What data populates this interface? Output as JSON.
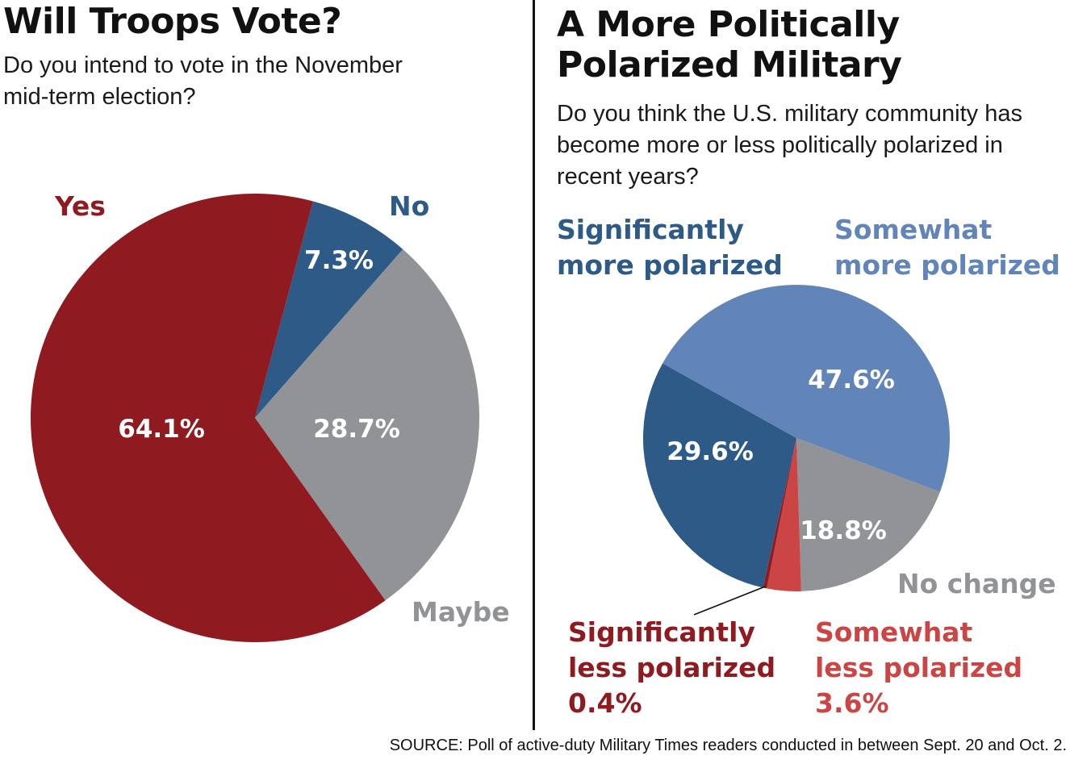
{
  "source": "SOURCE: Poll of active-duty Military Times readers conducted in between Sept. 20 and Oct. 2.",
  "chart_data": [
    {
      "type": "pie",
      "title": "Will Troops Vote?",
      "subtitle_lines": [
        "Do you intend to vote in the November",
        "mid-term election?"
      ],
      "slices": [
        {
          "label": "No",
          "value": 7.3,
          "display": "7.3%",
          "color": "#2e5a87"
        },
        {
          "label": "Maybe",
          "value": 28.7,
          "display": "28.7%",
          "color": "#929397"
        },
        {
          "label": "Yes",
          "value": 64.1,
          "display": "64.1%",
          "color": "#8f1a20"
        }
      ]
    },
    {
      "type": "pie",
      "title_lines": [
        "A More Politically",
        "Polarized Military"
      ],
      "subtitle_lines": [
        "Do you think the U.S. military community has",
        "become more or less politically polarized in",
        "recent years?"
      ],
      "slices": [
        {
          "label_lines": [
            "Somewhat",
            "more polarized"
          ],
          "value": 47.6,
          "display": "47.6%",
          "color": "#6185b9"
        },
        {
          "label_lines": [
            "No change"
          ],
          "value": 18.8,
          "display": "18.8%",
          "color": "#929397"
        },
        {
          "label_lines": [
            "Somewhat",
            "less polarized"
          ],
          "value": 3.6,
          "display": "3.6%",
          "color": "#cc4545"
        },
        {
          "label_lines": [
            "Significantly",
            "less polarized"
          ],
          "value": 0.4,
          "display": "0.4%",
          "color": "#8f1a20"
        },
        {
          "label_lines": [
            "Significantly",
            "more polarized"
          ],
          "value": 29.6,
          "display": "29.6%",
          "color": "#2e5a87"
        }
      ]
    }
  ]
}
